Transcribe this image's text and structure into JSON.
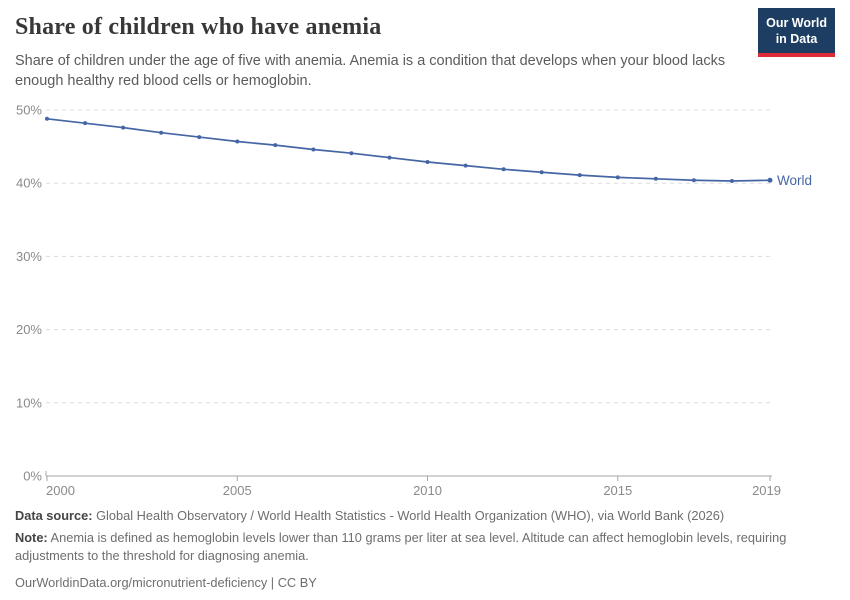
{
  "header": {
    "title": "Share of children who have anemia",
    "subtitle": "Share of children under the age of five with anemia. Anemia is a condition that develops when your blood lacks enough healthy red blood cells or hemoglobin.",
    "logo": {
      "line1": "Our World",
      "line2": "in Data",
      "bg_color": "#1d3d63",
      "accent_color": "#dd2c37"
    }
  },
  "chart_data": {
    "type": "line",
    "title": "Share of children who have anemia",
    "x": [
      2000,
      2001,
      2002,
      2003,
      2004,
      2005,
      2006,
      2007,
      2008,
      2009,
      2010,
      2011,
      2012,
      2013,
      2014,
      2015,
      2016,
      2017,
      2018,
      2019
    ],
    "series": [
      {
        "name": "World",
        "color": "#4566a4",
        "values": [
          48.8,
          48.2,
          47.6,
          46.9,
          46.3,
          45.7,
          45.2,
          44.6,
          44.1,
          43.5,
          42.9,
          42.4,
          41.9,
          41.5,
          41.1,
          40.8,
          40.6,
          40.4,
          40.3,
          40.4
        ]
      }
    ],
    "xlabel": "",
    "ylabel": "",
    "ylim": [
      0,
      50
    ],
    "yticks": [
      0,
      10,
      20,
      30,
      40,
      50
    ],
    "ytick_suffix": "%",
    "xticks": [
      2000,
      2005,
      2010,
      2015,
      2019
    ],
    "grid": "horizontal-dashed",
    "legend": "end-of-line-label"
  },
  "footer": {
    "data_source_label": "Data source:",
    "data_source_text": " Global Health Observatory / World Health Statistics - World Health Organization (WHO), via World Bank (2026)",
    "note_label": "Note:",
    "note_text": " Anemia is defined as hemoglobin levels lower than 110 grams per liter at sea level. Altitude can affect hemoglobin levels, requiring adjustments to the threshold for diagnosing anemia.",
    "url": "OurWorldinData.org/micronutrient-deficiency",
    "license_separator": " | ",
    "license": "CC BY"
  }
}
